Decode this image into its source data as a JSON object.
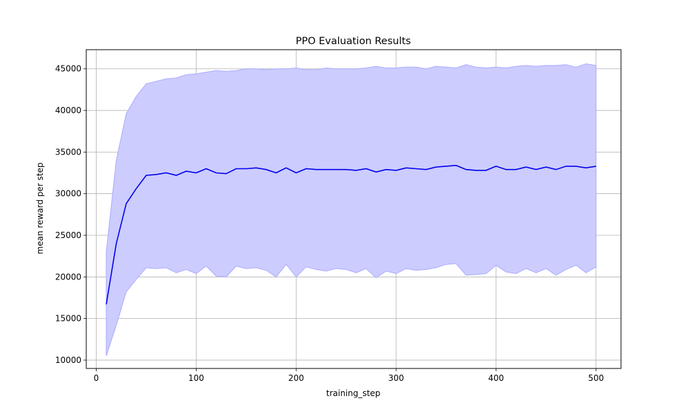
{
  "chart_data": {
    "type": "line",
    "title": "PPO Evaluation Results",
    "xlabel": "training_step",
    "ylabel": "mean reward per step",
    "xlim": [
      -10,
      525
    ],
    "ylim": [
      9000,
      47300
    ],
    "xticks": [
      0,
      100,
      200,
      300,
      400,
      500
    ],
    "yticks": [
      10000,
      15000,
      20000,
      25000,
      30000,
      35000,
      40000,
      45000
    ],
    "grid": true,
    "colors": {
      "line": "#0000ee",
      "band": "#ccccff",
      "band_edge": "#aaaaff",
      "grid": "#b0b0b0"
    },
    "x": [
      10,
      20,
      30,
      40,
      50,
      60,
      70,
      80,
      90,
      100,
      110,
      120,
      130,
      140,
      150,
      160,
      170,
      180,
      190,
      200,
      210,
      220,
      230,
      240,
      250,
      260,
      270,
      280,
      290,
      300,
      310,
      320,
      330,
      340,
      350,
      360,
      370,
      380,
      390,
      400,
      410,
      420,
      430,
      440,
      450,
      460,
      470,
      480,
      490,
      500
    ],
    "mean": [
      16700,
      24000,
      28800,
      30600,
      32200,
      32300,
      32500,
      32200,
      32700,
      32500,
      33000,
      32500,
      32400,
      33000,
      33000,
      33100,
      32900,
      32500,
      33100,
      32500,
      33000,
      32900,
      32900,
      32900,
      32900,
      32800,
      33000,
      32600,
      32900,
      32800,
      33100,
      33000,
      32900,
      33200,
      33300,
      33400,
      32900,
      32800,
      32800,
      33300,
      32900,
      32900,
      33200,
      32900,
      33200,
      32900,
      33300,
      33300,
      33100,
      33300
    ],
    "upper": [
      23000,
      34000,
      39600,
      41700,
      43200,
      43500,
      43800,
      43900,
      44300,
      44400,
      44600,
      44800,
      44700,
      44800,
      45000,
      45000,
      44900,
      45000,
      45000,
      45100,
      44900,
      44900,
      45100,
      45000,
      45000,
      45000,
      45100,
      45300,
      45100,
      45100,
      45200,
      45200,
      45000,
      45300,
      45200,
      45100,
      45500,
      45200,
      45100,
      45200,
      45100,
      45300,
      45400,
      45300,
      45400,
      45400,
      45500,
      45200,
      45600,
      45400
    ],
    "lower": [
      10500,
      14200,
      18200,
      19700,
      21100,
      21000,
      21100,
      20500,
      20900,
      20400,
      21300,
      20100,
      20000,
      21300,
      21000,
      21100,
      20800,
      20000,
      21500,
      20000,
      21200,
      20900,
      20700,
      21000,
      20900,
      20500,
      21000,
      19900,
      20700,
      20400,
      21000,
      20800,
      20900,
      21100,
      21500,
      21600,
      20200,
      20300,
      20400,
      21400,
      20600,
      20400,
      21000,
      20500,
      21000,
      20200,
      20900,
      21400,
      20500,
      21200
    ]
  }
}
